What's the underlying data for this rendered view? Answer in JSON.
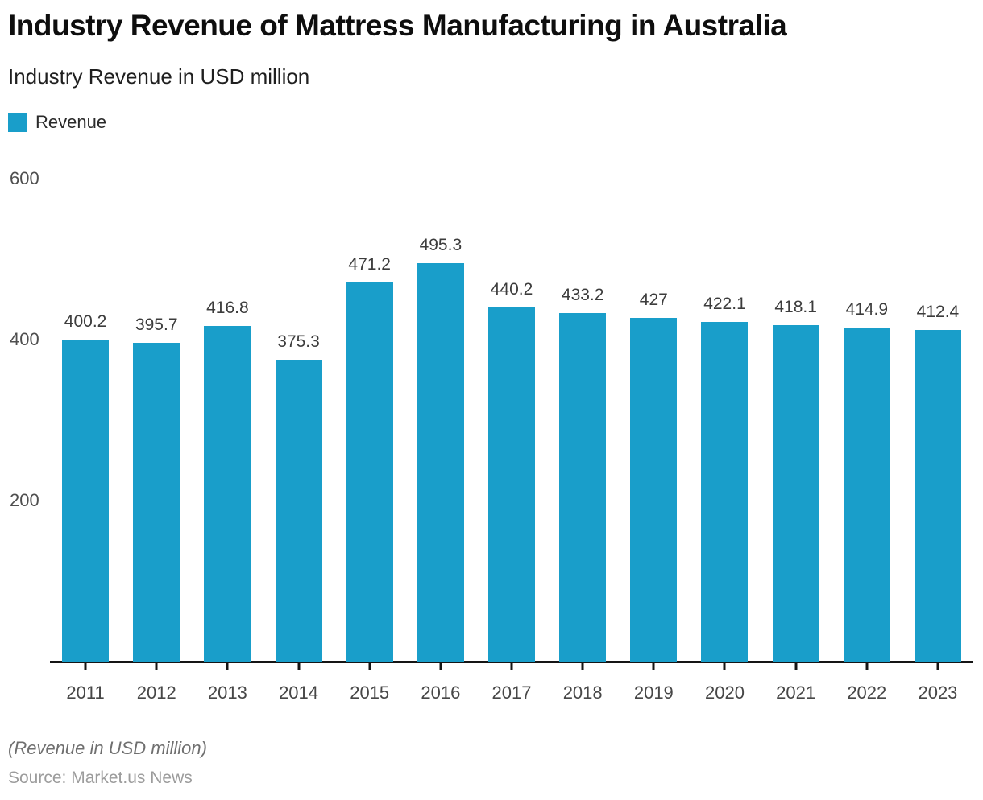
{
  "header": {
    "title": "Industry Revenue of Mattress Manufacturing in Australia",
    "subtitle": "Industry Revenue in USD million"
  },
  "legend": {
    "label": "Revenue",
    "color": "#199ECA"
  },
  "chart_data": {
    "type": "bar",
    "title": "Industry Revenue of Mattress Manufacturing in Australia",
    "subtitle": "Industry Revenue in USD million",
    "categories": [
      "2011",
      "2012",
      "2013",
      "2014",
      "2015",
      "2016",
      "2017",
      "2018",
      "2019",
      "2020",
      "2021",
      "2022",
      "2023"
    ],
    "series": [
      {
        "name": "Revenue",
        "values": [
          400.2,
          395.7,
          416.8,
          375.3,
          471.2,
          495.3,
          440.2,
          433.2,
          427,
          422.1,
          418.1,
          414.9,
          412.4
        ]
      }
    ],
    "value_labels": [
      "400.2",
      "395.7",
      "416.8",
      "375.3",
      "471.2",
      "495.3",
      "440.2",
      "433.2",
      "427",
      "422.1",
      "418.1",
      "414.9",
      "412.4"
    ],
    "xlabel": "",
    "ylabel": "",
    "ylim": [
      0,
      600
    ],
    "yticks": [
      600,
      400,
      200
    ],
    "grid": true,
    "legend_position": "top-left",
    "bar_color": "#199ECA",
    "grid_color": "#d8d8d8",
    "axis_color": "#151515"
  },
  "footer": {
    "note": "(Revenue in USD million)",
    "source": "Source: Market.us News"
  }
}
